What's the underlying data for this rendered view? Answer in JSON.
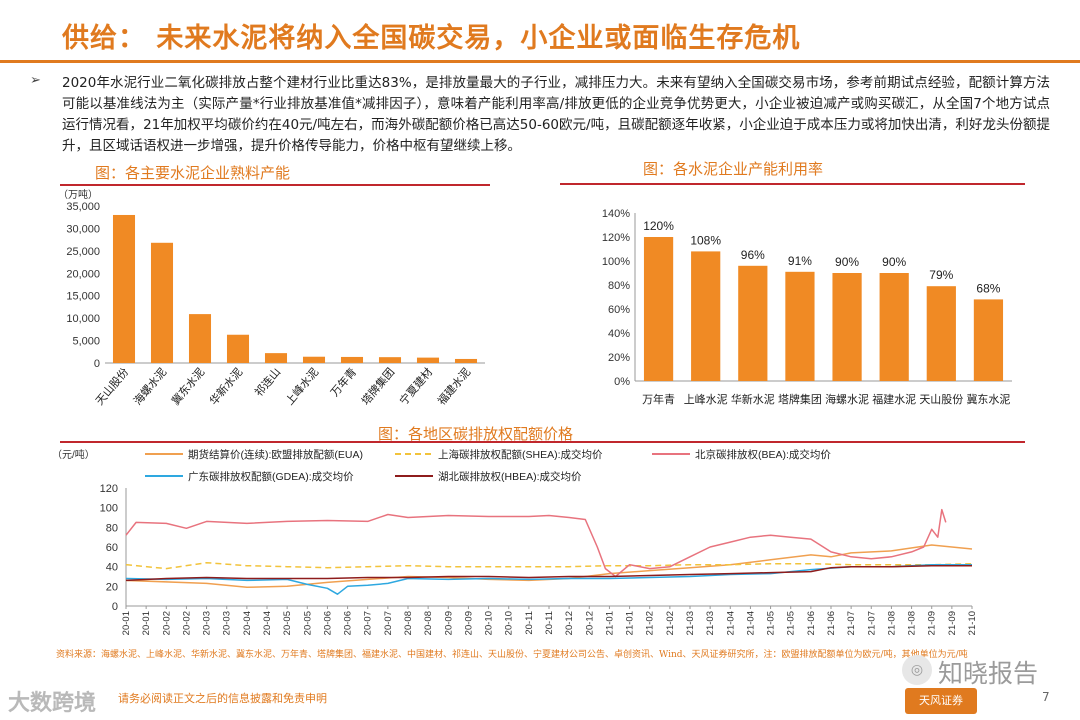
{
  "header": {
    "title": "供给：  未来水泥将纳入全国碳交易，小企业或面临生存危机",
    "bullet": "➢",
    "summary": "2020年水泥行业二氧化碳排放占整个建材行业比重达83%，是排放量最大的子行业，减排压力大。未来有望纳入全国碳交易市场，参考前期试点经验，配额计算方法可能以基准线法为主（实际产量*行业排放基准值*减排因子），意味着产能利用率高/排放更低的企业竞争优势更大，小企业被迫减产或购买碳汇，从全国7个地方试点运行情况看，21年加权平均碳价约在40元/吨左右，而海外碳配额价格已高达50-60欧元/吨，且碳配额逐年收紧，小企业迫于成本压力或将加快出清，利好龙头份额提升，且区域话语权进一步增强，提升价格传导能力，价格中枢有望继续上移。"
  },
  "colors": {
    "accent": "#e07a1f",
    "bar": "#f08a24",
    "rule": "#c0272d"
  },
  "chart_data": [
    {
      "type": "bar",
      "title": "图：各主要水泥企业熟料产能",
      "ylabel": "（万吨）",
      "categories": [
        "天山股份",
        "海螺水泥",
        "冀东水泥",
        "华新水泥",
        "祁连山",
        "上峰水泥",
        "万年青",
        "塔牌集团",
        "宁夏建材",
        "福建水泥"
      ],
      "values": [
        33000,
        26800,
        10900,
        6300,
        2200,
        1400,
        1350,
        1300,
        1200,
        900
      ],
      "ylim": [
        0,
        35000
      ],
      "yticks": [
        0,
        5000,
        10000,
        15000,
        20000,
        25000,
        30000,
        35000
      ],
      "ytick_labels": [
        "0",
        "5,000",
        "10,000",
        "15,000",
        "20,000",
        "25,000",
        "30,000",
        "35,000"
      ]
    },
    {
      "type": "bar",
      "title": "图：各水泥企业产能利用率",
      "categories": [
        "万年青",
        "上峰水泥",
        "华新水泥",
        "塔牌集团",
        "海螺水泥",
        "福建水泥",
        "天山股份",
        "冀东水泥"
      ],
      "values": [
        120,
        108,
        96,
        91,
        90,
        90,
        79,
        68
      ],
      "data_labels": [
        "120%",
        "108%",
        "96%",
        "91%",
        "90%",
        "90%",
        "79%",
        "68%"
      ],
      "ylim": [
        0,
        140
      ],
      "yticks": [
        0,
        20,
        40,
        60,
        80,
        100,
        120,
        140
      ],
      "ytick_labels": [
        "0%",
        "20%",
        "40%",
        "60%",
        "80%",
        "100%",
        "120%",
        "140%"
      ]
    },
    {
      "type": "line",
      "title": "图：各地区碳排放权配额价格",
      "ylabel": "（元/吨）",
      "ylim": [
        0,
        120
      ],
      "yticks": [
        0,
        20,
        40,
        60,
        80,
        100,
        120
      ],
      "x_labels": [
        "20-01",
        "20-01",
        "20-02",
        "20-02",
        "20-03",
        "20-03",
        "20-04",
        "20-04",
        "20-05",
        "20-05",
        "20-06",
        "20-06",
        "20-07",
        "20-07",
        "20-08",
        "20-08",
        "20-09",
        "20-09",
        "20-10",
        "20-10",
        "20-11",
        "20-11",
        "20-12",
        "20-12",
        "21-01",
        "21-01",
        "21-02",
        "21-02",
        "21-03",
        "21-03",
        "21-04",
        "21-04",
        "21-05",
        "21-05",
        "21-06",
        "21-06",
        "21-07",
        "21-07",
        "21-08",
        "21-08",
        "21-09",
        "21-09",
        "21-10"
      ],
      "series": [
        {
          "name": "期货结算价(连续):欧盟排放配额(EUA)",
          "color": "#f0a050",
          "dash": "",
          "width": 1.5,
          "points": [
            [
              0,
              26
            ],
            [
              4,
              23
            ],
            [
              6,
              19
            ],
            [
              8,
              20
            ],
            [
              10,
              24
            ],
            [
              12,
              27
            ],
            [
              14,
              30
            ],
            [
              16,
              29
            ],
            [
              18,
              27
            ],
            [
              20,
              26
            ],
            [
              22,
              28
            ],
            [
              24,
              33
            ],
            [
              26,
              36
            ],
            [
              28,
              39
            ],
            [
              30,
              42
            ],
            [
              32,
              47
            ],
            [
              34,
              52
            ],
            [
              35,
              50
            ],
            [
              36,
              54
            ],
            [
              38,
              56
            ],
            [
              40,
              62
            ],
            [
              42,
              58
            ]
          ]
        },
        {
          "name": "上海碳排放权配额(SHEA):成交均价",
          "color": "#f2c33b",
          "dash": "6 4",
          "width": 1.5,
          "points": [
            [
              0,
              42
            ],
            [
              2,
              38
            ],
            [
              4,
              44
            ],
            [
              6,
              41
            ],
            [
              8,
              40
            ],
            [
              10,
              39
            ],
            [
              12,
              40
            ],
            [
              14,
              41
            ],
            [
              16,
              40
            ],
            [
              18,
              40
            ],
            [
              20,
              40
            ],
            [
              22,
              40
            ],
            [
              24,
              41
            ],
            [
              26,
              41
            ],
            [
              28,
              42
            ],
            [
              30,
              42
            ],
            [
              32,
              43
            ],
            [
              34,
              43
            ],
            [
              36,
              42
            ],
            [
              38,
              42
            ],
            [
              40,
              42
            ],
            [
              42,
              43
            ]
          ]
        },
        {
          "name": "北京碳排放权(BEA):成交均价",
          "color": "#e8737e",
          "dash": "",
          "width": 1.5,
          "points": [
            [
              0,
              72
            ],
            [
              0.5,
              85
            ],
            [
              2,
              84
            ],
            [
              3,
              79
            ],
            [
              4,
              86
            ],
            [
              6,
              84
            ],
            [
              8,
              86
            ],
            [
              10,
              87
            ],
            [
              12,
              86
            ],
            [
              13,
              93
            ],
            [
              14,
              90
            ],
            [
              16,
              92
            ],
            [
              18,
              91
            ],
            [
              20,
              91
            ],
            [
              21,
              92
            ],
            [
              22,
              90
            ],
            [
              22.8,
              88
            ],
            [
              23.4,
              60
            ],
            [
              23.8,
              38
            ],
            [
              24.3,
              30
            ],
            [
              25,
              42
            ],
            [
              26,
              38
            ],
            [
              27,
              40
            ],
            [
              28,
              50
            ],
            [
              29,
              60
            ],
            [
              30,
              65
            ],
            [
              31,
              70
            ],
            [
              32,
              72
            ],
            [
              33,
              70
            ],
            [
              34,
              68
            ],
            [
              35,
              55
            ],
            [
              36,
              50
            ],
            [
              37,
              48
            ],
            [
              38,
              50
            ],
            [
              39,
              55
            ],
            [
              39.6,
              60
            ],
            [
              40,
              78
            ],
            [
              40.3,
              70
            ],
            [
              40.5,
              98
            ],
            [
              40.7,
              85
            ]
          ]
        },
        {
          "name": "广东碳排放权配额(GDEA):成交均价",
          "color": "#2ea8e0",
          "dash": "",
          "width": 1.5,
          "points": [
            [
              0,
              28
            ],
            [
              2,
              27
            ],
            [
              4,
              28
            ],
            [
              6,
              26
            ],
            [
              8,
              27
            ],
            [
              9,
              22
            ],
            [
              10,
              18
            ],
            [
              10.5,
              12
            ],
            [
              11,
              20
            ],
            [
              12,
              21
            ],
            [
              13,
              23
            ],
            [
              14,
              28
            ],
            [
              16,
              27
            ],
            [
              18,
              28
            ],
            [
              20,
              27
            ],
            [
              22,
              28
            ],
            [
              24,
              28
            ],
            [
              26,
              29
            ],
            [
              28,
              30
            ],
            [
              30,
              32
            ],
            [
              32,
              33
            ],
            [
              34,
              37
            ],
            [
              36,
              40
            ],
            [
              38,
              40
            ],
            [
              40,
              42
            ],
            [
              42,
              42
            ]
          ]
        },
        {
          "name": "湖北碳排放权(HBEA):成交均价",
          "color": "#8e1c1c",
          "dash": "",
          "width": 1.5,
          "points": [
            [
              0,
              26
            ],
            [
              2,
              28
            ],
            [
              4,
              29
            ],
            [
              6,
              28
            ],
            [
              8,
              28
            ],
            [
              10,
              28
            ],
            [
              12,
              29
            ],
            [
              14,
              29
            ],
            [
              16,
              30
            ],
            [
              18,
              30
            ],
            [
              20,
              29
            ],
            [
              22,
              30
            ],
            [
              24,
              30
            ],
            [
              26,
              31
            ],
            [
              28,
              32
            ],
            [
              30,
              33
            ],
            [
              32,
              34
            ],
            [
              34,
              35
            ],
            [
              35,
              39
            ],
            [
              36,
              40
            ],
            [
              38,
              40
            ],
            [
              40,
              41
            ],
            [
              42,
              41
            ]
          ]
        }
      ]
    }
  ],
  "source": "资料来源：海螺水泥、上峰水泥、华新水泥、冀东水泥、万年青、塔牌集团、福建水泥、中国建材、祁连山、天山股份、宁夏建材公司公告、卓创资讯、Wind、天风证券研究所，注：欧盟排放配额单位为欧元/吨，其他单位为元/吨",
  "footer": {
    "logo": "大数跨境",
    "note": "请务必阅读正文之后的信息披露和免责申明",
    "watermark": "知晓报告",
    "brand": "天风证券",
    "page": "7"
  }
}
